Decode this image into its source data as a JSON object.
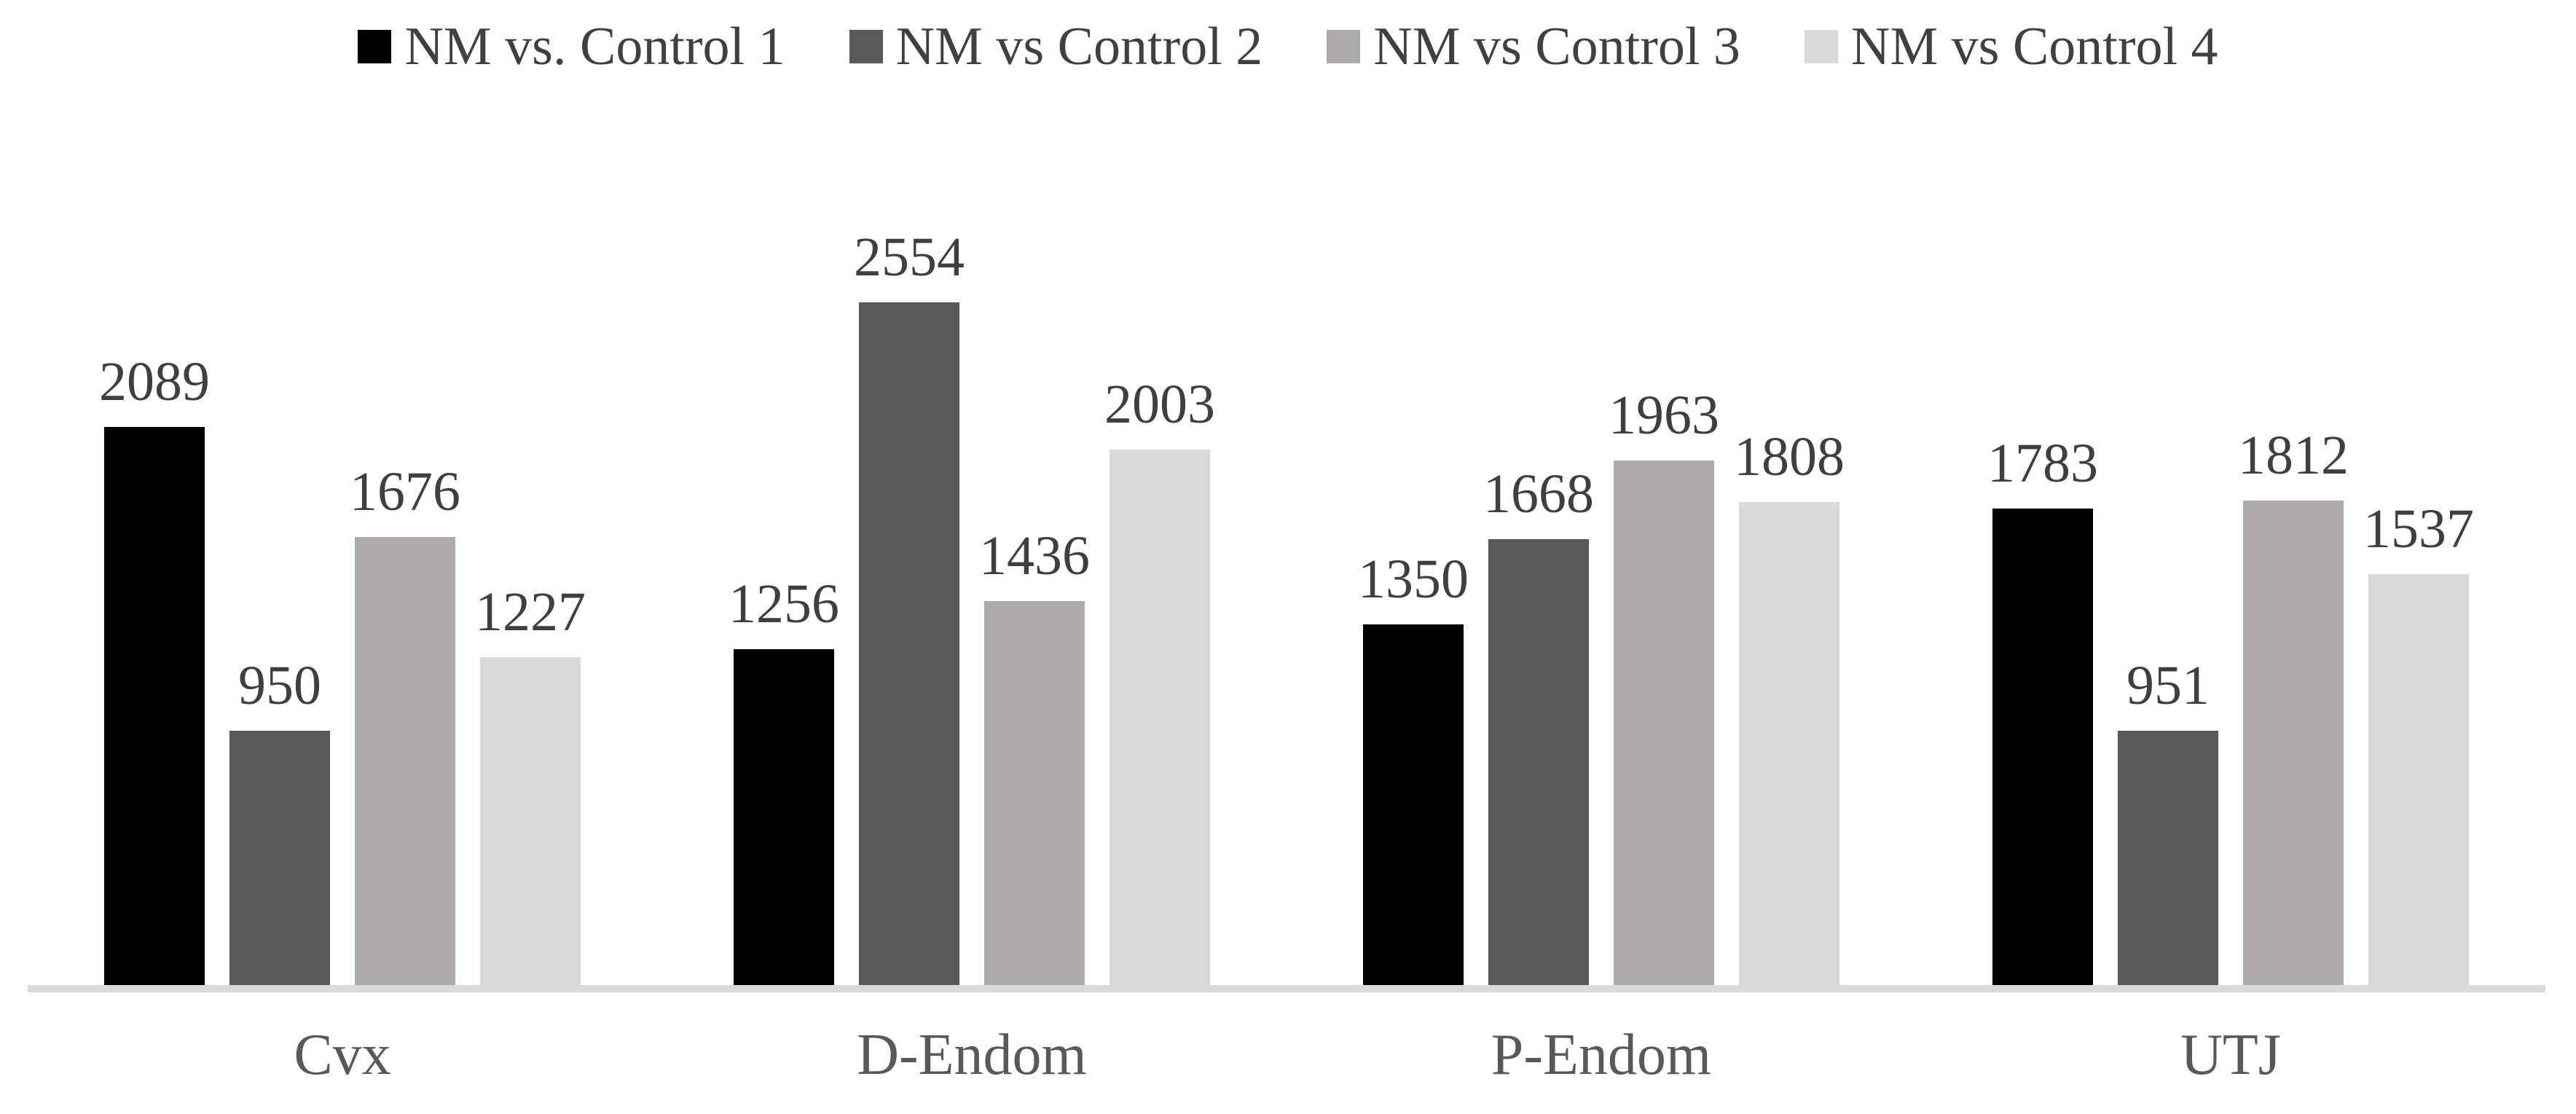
{
  "chart_data": {
    "type": "bar",
    "title": "",
    "xlabel": "",
    "ylabel": "",
    "categories": [
      "Cvx",
      "D-Endom",
      "P-Endom",
      "UTJ"
    ],
    "series": [
      {
        "name": "NM vs. Control 1",
        "color": "#000000",
        "values": [
          2089,
          1256,
          1350,
          1783
        ]
      },
      {
        "name": "NM vs Control 2",
        "color": "#595959",
        "values": [
          950,
          2554,
          1668,
          951
        ]
      },
      {
        "name": "NM vs Control 3",
        "color": "#aeaaaa",
        "values": [
          1676,
          1436,
          1963,
          1812
        ]
      },
      {
        "name": "NM vs Control 4",
        "color": "#d9d9d9",
        "values": [
          1227,
          2003,
          1808,
          1537
        ]
      }
    ],
    "ylim": [
      0,
      2554
    ],
    "value_labels": true,
    "legend_position": "top",
    "grid": false,
    "axis_line_color": "#d9d9d9",
    "text_color": "#3f3f3f",
    "background_color": "#ffffff"
  }
}
